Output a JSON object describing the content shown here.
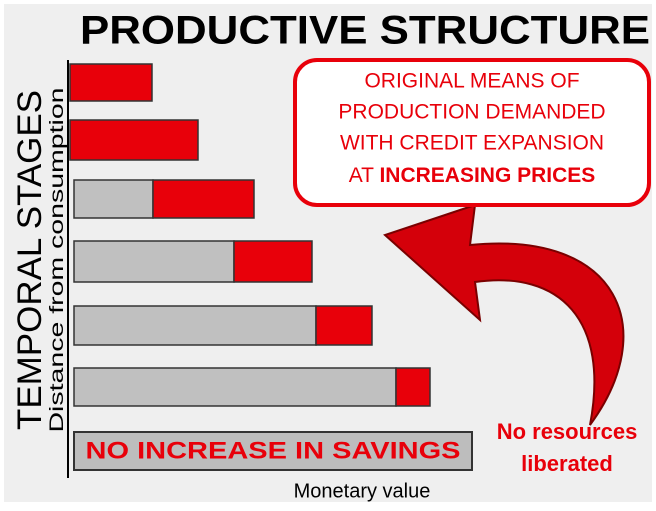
{
  "header": {
    "title": "PRODUCTIVE STRUCTURE"
  },
  "axes": {
    "y_title": "TEMPORAL STAGES",
    "y_subtitle": "Distance from consumption",
    "x_title": "Monetary value"
  },
  "callout": {
    "lines": [
      "ORIGINAL MEANS OF",
      "PRODUCTION DEMANDED",
      "WITH CREDIT EXPANSION"
    ],
    "last_prefix": "AT",
    "last_emphasis": "INCREASING PRICES"
  },
  "savings_box": "NO INCREASE IN SAVINGS",
  "side_note": [
    "No resources",
    "liberated"
  ]
}
